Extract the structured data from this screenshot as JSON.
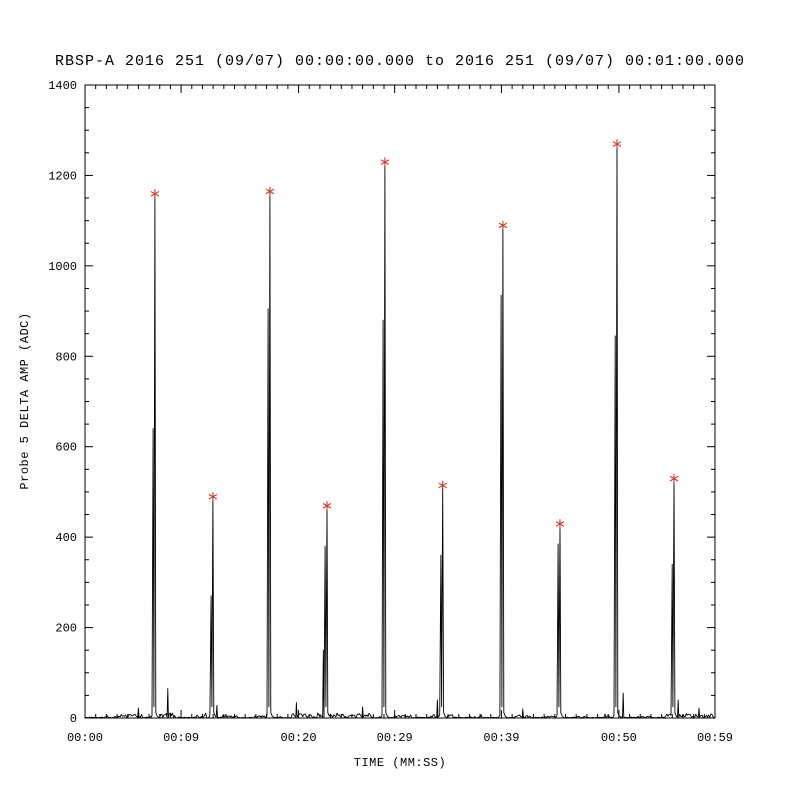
{
  "chart_data": {
    "type": "line",
    "title": "RBSP-A 2016 251 (09/07) 00:00:00.000 to 2016 251 (09/07) 00:01:00.000",
    "xlabel": "TIME (MM:SS)",
    "ylabel": "Probe 5 DELTA AMP (ADC)",
    "xlim_seconds": [
      0,
      59
    ],
    "ylim": [
      0,
      1400
    ],
    "x_major_ticks": [
      {
        "t": 0,
        "label": "00:00"
      },
      {
        "t": 9,
        "label": "00:09"
      },
      {
        "t": 20,
        "label": "00:20"
      },
      {
        "t": 29,
        "label": "00:29"
      },
      {
        "t": 39,
        "label": "00:39"
      },
      {
        "t": 50,
        "label": "00:50"
      },
      {
        "t": 59,
        "label": "00:59"
      }
    ],
    "y_major_ticks": [
      0,
      200,
      400,
      600,
      800,
      1000,
      1200,
      1400
    ],
    "y_minor_step": 50,
    "x_minor_step": 1,
    "grid": false,
    "legend": "none",
    "line_color": "#000000",
    "axis_color": "#000000",
    "background_color": "#ffffff",
    "marker": "asterisk",
    "marker_color": "#cf3a22",
    "markers_at_peaks": true,
    "spikes": [
      {
        "t": 6.55,
        "shoulder": 640,
        "peak": 1155
      },
      {
        "t": 11.98,
        "shoulder": 270,
        "peak": 485
      },
      {
        "t": 17.32,
        "shoulder": 905,
        "peak": 1160
      },
      {
        "t": 22.66,
        "shoulder": 380,
        "peak": 465
      },
      {
        "t": 28.09,
        "shoulder": 880,
        "peak": 1225
      },
      {
        "t": 33.5,
        "shoulder": 360,
        "peak": 510
      },
      {
        "t": 39.14,
        "shoulder": 935,
        "peak": 1085
      },
      {
        "t": 44.48,
        "shoulder": 385,
        "peak": 425
      },
      {
        "t": 49.82,
        "shoulder": 845,
        "peak": 1265
      },
      {
        "t": 55.16,
        "shoulder": 340,
        "peak": 525
      }
    ],
    "minor_spikes": [
      [
        5.0,
        22
      ],
      [
        7.75,
        65
      ],
      [
        12.35,
        28
      ],
      [
        19.8,
        34
      ],
      [
        22.32,
        150
      ],
      [
        26.0,
        24
      ],
      [
        33.0,
        40
      ],
      [
        41.0,
        20
      ],
      [
        50.4,
        55
      ],
      [
        55.55,
        40
      ],
      [
        57.5,
        22
      ]
    ],
    "noise_regions": [
      [
        1.5,
        2.2,
        3
      ],
      [
        2.8,
        5.3,
        8
      ],
      [
        7.0,
        8.4,
        12
      ],
      [
        10.4,
        11.3,
        8
      ],
      [
        12.8,
        14.2,
        6
      ],
      [
        15.8,
        17.0,
        5
      ],
      [
        19.4,
        21.6,
        10
      ],
      [
        21.8,
        26.8,
        11
      ],
      [
        29.0,
        30.6,
        7
      ],
      [
        32.4,
        34.6,
        8
      ],
      [
        36.0,
        37.2,
        4
      ],
      [
        40.3,
        41.8,
        6
      ],
      [
        42.8,
        44.1,
        5
      ],
      [
        45.8,
        47.2,
        4
      ],
      [
        48.4,
        49.6,
        5
      ],
      [
        51.8,
        53.2,
        4
      ],
      [
        54.4,
        58.9,
        10
      ]
    ],
    "baseline_default_amp": 2
  }
}
